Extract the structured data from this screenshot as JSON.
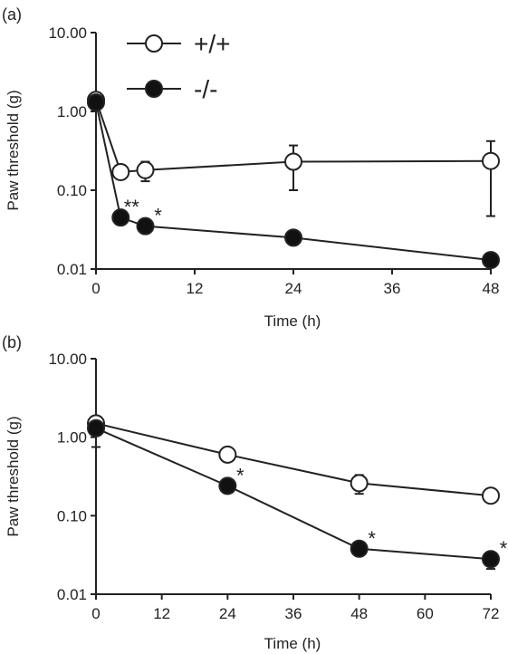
{
  "chart_data": [
    {
      "type": "line",
      "panel_label": "(a)",
      "ylabel": "Paw threshold (g)",
      "xlabel": "Time (h)",
      "yscale": "log",
      "ylim": [
        0.01,
        10
      ],
      "xlim": [
        0,
        48
      ],
      "yticks": [
        "0.01",
        "0.10",
        "1.00",
        "10.00"
      ],
      "xticks": [
        "0",
        "12",
        "24",
        "36",
        "48"
      ],
      "legend": {
        "placement": "top-left",
        "entries": [
          "+/+",
          "-/-"
        ]
      },
      "series": [
        {
          "name": "+/+",
          "marker": "open-circle",
          "x": [
            0,
            3,
            6,
            24,
            48
          ],
          "y": [
            1.4,
            0.17,
            0.18,
            0.23,
            0.235
          ],
          "err_low": [
            1.3,
            0.14,
            0.13,
            0.1,
            0.047
          ],
          "err_high": [
            1.5,
            0.21,
            0.23,
            0.37,
            0.42
          ]
        },
        {
          "name": "-/-",
          "marker": "filled-circle",
          "x": [
            0,
            3,
            6,
            24,
            48
          ],
          "y": [
            1.3,
            0.045,
            0.035,
            0.025,
            0.013
          ],
          "err_low": [
            1.2,
            0.041,
            0.032,
            0.021,
            0.012
          ],
          "err_high": [
            1.4,
            0.049,
            0.038,
            0.029,
            0.014
          ]
        }
      ],
      "annotations": [
        {
          "text": "**",
          "x": 3,
          "y": 0.045
        },
        {
          "text": "*",
          "x": 6,
          "y": 0.035
        }
      ]
    },
    {
      "type": "line",
      "panel_label": "(b)",
      "ylabel": "Paw threshold (g)",
      "xlabel": "Time (h)",
      "yscale": "log",
      "ylim": [
        0.01,
        10
      ],
      "xlim": [
        0,
        72
      ],
      "yticks": [
        "0.01",
        "0.10",
        "1.00",
        "10.00"
      ],
      "xticks": [
        "0",
        "12",
        "24",
        "36",
        "48",
        "60",
        "72"
      ],
      "series": [
        {
          "name": "+/+",
          "marker": "open-circle",
          "x": [
            0,
            24,
            48,
            72
          ],
          "y": [
            1.5,
            0.6,
            0.26,
            0.18
          ],
          "err_low": [
            1.3,
            0.52,
            0.19,
            0.15
          ],
          "err_high": [
            1.7,
            0.68,
            0.33,
            0.21
          ]
        },
        {
          "name": "-/-",
          "marker": "filled-circle",
          "x": [
            0,
            24,
            48,
            72
          ],
          "y": [
            1.3,
            0.24,
            0.038,
            0.028
          ],
          "err_low": [
            0.75,
            0.21,
            0.034,
            0.021
          ],
          "err_high": [
            1.6,
            0.27,
            0.042,
            0.034
          ]
        }
      ],
      "annotations": [
        {
          "text": "*",
          "x": 24,
          "y": 0.24
        },
        {
          "text": "*",
          "x": 48,
          "y": 0.038
        },
        {
          "text": "*",
          "x": 72,
          "y": 0.028
        }
      ]
    }
  ]
}
